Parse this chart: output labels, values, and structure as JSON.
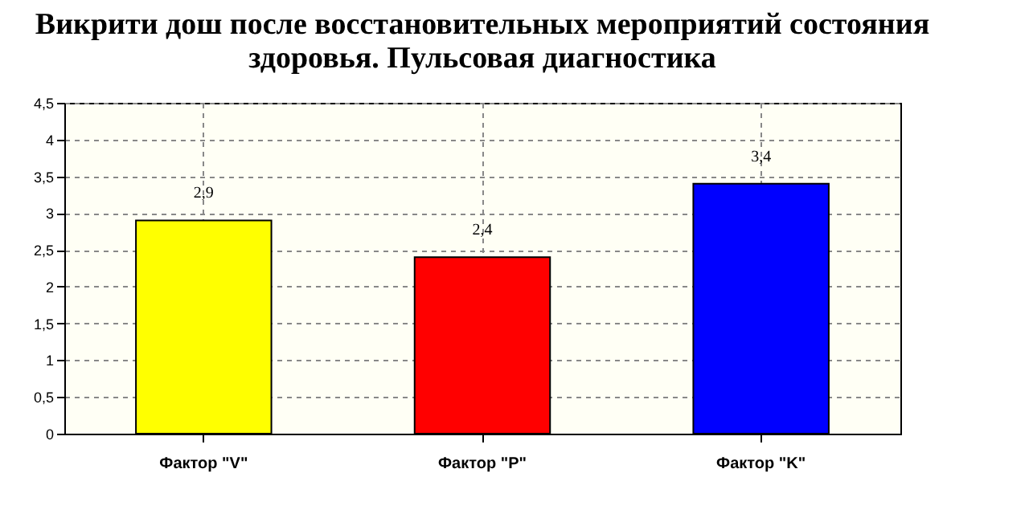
{
  "chart_data": {
    "type": "bar",
    "title": "Викрити дош после восстановительных мероприятий состояния здоровья. Пульсовая диагностика",
    "categories": [
      "Фактор \"V\"",
      "Фактор \"P\"",
      "Фактор \"K\""
    ],
    "values": [
      2.9,
      2.4,
      3.4
    ],
    "colors": [
      "#ffff00",
      "#ff0000",
      "#0000ff"
    ],
    "value_labels": [
      "2,9",
      "2,4",
      "3,4"
    ],
    "ylim": [
      0,
      4.5
    ],
    "yticks": [
      0,
      {
        "value": 0.5,
        "label": "0,5"
      },
      1,
      {
        "value": 1.5,
        "label": "1,5"
      },
      2,
      {
        "value": 2.5,
        "label": "2,5"
      },
      3,
      {
        "value": 3.5,
        "label": "3,5"
      },
      4,
      {
        "value": 4.5,
        "label": "4,5"
      }
    ],
    "grid": true
  }
}
